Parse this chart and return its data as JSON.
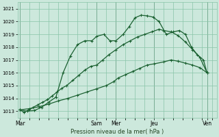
{
  "xlabel": "Pression niveau de la mer( hPa )",
  "background_color": "#cce8dc",
  "grid_color": "#88c4a8",
  "line_color": "#1a6030",
  "ylim": [
    1012.5,
    1021.5
  ],
  "yticks": [
    1013,
    1014,
    1015,
    1016,
    1017,
    1018,
    1019,
    1020,
    1021
  ],
  "xtick_labels": [
    "Mar",
    "",
    "Sam",
    "Mer",
    "",
    "Jeu",
    "",
    "Ven"
  ],
  "xtick_positions": [
    0,
    1.6,
    3.2,
    4.0,
    5.0,
    5.6,
    6.5,
    7.8
  ],
  "xlim": [
    -0.1,
    8.2
  ],
  "vlines": [
    0,
    3.2,
    4.0,
    5.6,
    7.8
  ],
  "series1_x": [
    0,
    0.18,
    0.36,
    0.55,
    0.75,
    0.95,
    1.15,
    1.35,
    1.55,
    1.75,
    1.95,
    2.2,
    2.45,
    2.7,
    2.95,
    3.2,
    3.45,
    3.7,
    4.0,
    4.3,
    4.6,
    4.9,
    5.2,
    5.5,
    5.8,
    6.0,
    6.3,
    6.6,
    6.9,
    7.2,
    7.5,
    7.8
  ],
  "series1_y": [
    1013.1,
    1012.9,
    1013.1,
    1013.3,
    1013.5,
    1013.7,
    1013.9,
    1014.2,
    1014.5,
    1014.8,
    1015.0,
    1015.4,
    1015.8,
    1016.2,
    1016.5,
    1016.6,
    1017.0,
    1017.4,
    1017.8,
    1018.2,
    1018.5,
    1018.8,
    1019.0,
    1019.2,
    1019.4,
    1019.3,
    1019.2,
    1018.9,
    1018.4,
    1017.8,
    1017.2,
    1016.0
  ],
  "series2_x": [
    0,
    0.3,
    0.6,
    0.9,
    1.2,
    1.5,
    1.8,
    2.1,
    2.4,
    2.7,
    3.0,
    3.2,
    3.5,
    3.75,
    4.0,
    4.3,
    4.55,
    4.8,
    5.05,
    5.3,
    5.55,
    5.8,
    6.1,
    6.4,
    6.65,
    6.9,
    7.15,
    7.4,
    7.65,
    7.8
  ],
  "series2_y": [
    1013.1,
    1013.0,
    1013.05,
    1013.3,
    1013.7,
    1014.1,
    1016.0,
    1017.3,
    1018.2,
    1018.5,
    1018.5,
    1018.85,
    1019.0,
    1018.5,
    1018.5,
    1019.0,
    1019.6,
    1020.3,
    1020.5,
    1020.45,
    1020.35,
    1020.0,
    1019.0,
    1019.2,
    1019.3,
    1019.0,
    1018.0,
    1017.4,
    1017.0,
    1016.0
  ],
  "series3_x": [
    0,
    0.4,
    0.8,
    1.2,
    1.6,
    2.0,
    2.4,
    2.8,
    3.2,
    3.6,
    3.9,
    4.1,
    4.4,
    4.7,
    5.0,
    5.3,
    5.6,
    6.0,
    6.3,
    6.6,
    6.9,
    7.2,
    7.5,
    7.8
  ],
  "series3_y": [
    1013.1,
    1013.2,
    1013.35,
    1013.55,
    1013.8,
    1014.0,
    1014.25,
    1014.5,
    1014.75,
    1015.0,
    1015.3,
    1015.6,
    1015.85,
    1016.1,
    1016.35,
    1016.6,
    1016.7,
    1016.85,
    1017.0,
    1016.9,
    1016.75,
    1016.6,
    1016.4,
    1016.0
  ]
}
